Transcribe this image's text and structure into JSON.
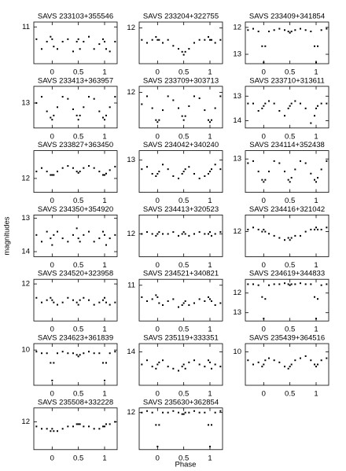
{
  "x_axis_label": "Phase",
  "y_axis_label": "magnitudes",
  "chart_data": [
    {
      "type": "scatter",
      "title": "SAVS 233103+355546",
      "x": [
        -0.3,
        -0.2,
        -0.1,
        -0.03,
        0,
        0.03,
        0.1,
        0.2,
        0.3,
        0.4,
        0.47,
        0.5,
        0.53,
        0.6,
        0.7,
        0.8,
        0.9,
        0.97,
        1,
        1.03,
        1.1,
        1.2
      ],
      "values": [
        11.25,
        11.45,
        11.3,
        11.2,
        11.25,
        11.4,
        11.45,
        11.3,
        11.25,
        11.5,
        11.3,
        11.25,
        11.45,
        11.3,
        11.2,
        11.45,
        11.35,
        11.25,
        11.3,
        11.45,
        11.5,
        11.3
      ],
      "xlim": [
        -0.35,
        1.24
      ],
      "xticks": [
        0,
        0.5,
        1
      ],
      "ylim": [
        11.75,
        10.9
      ],
      "yticks": [
        11
      ],
      "color": "#000000"
    },
    {
      "type": "scatter",
      "title": "SAVS 233204+322755",
      "x": [
        -0.3,
        -0.2,
        -0.1,
        -0.03,
        0,
        0.03,
        0.1,
        0.2,
        0.3,
        0.4,
        0.47,
        0.5,
        0.53,
        0.6,
        0.7,
        0.8,
        0.9,
        0.97,
        1,
        1.03,
        1.1,
        1.2
      ],
      "values": [
        12.2,
        12.25,
        12.2,
        12.15,
        12.2,
        12.2,
        12.25,
        12.2,
        12.3,
        12.35,
        12.4,
        12.45,
        12.4,
        12.35,
        12.25,
        12.2,
        12.2,
        12.15,
        12.2,
        12.2,
        12.25,
        12.2
      ],
      "xlim": [
        -0.35,
        1.24
      ],
      "xticks": [
        0,
        0.5,
        1
      ],
      "ylim": [
        12.6,
        11.9
      ],
      "yticks": [
        12
      ],
      "color": "#000000"
    },
    {
      "type": "scatter",
      "title": "SAVS 233409+341854",
      "x": [
        -0.3,
        -0.2,
        -0.1,
        -0.03,
        0,
        0.03,
        0.1,
        0.2,
        0.3,
        0.4,
        0.47,
        0.5,
        0.53,
        0.6,
        0.7,
        0.8,
        0.9,
        0.97,
        1,
        1.03,
        1.1,
        1.2
      ],
      "values": [
        12.1,
        12.05,
        12.15,
        12.7,
        13.3,
        12.7,
        12.15,
        12.1,
        12.05,
        12.1,
        12.15,
        12.2,
        12.15,
        12.1,
        12.05,
        12.1,
        12.15,
        12.7,
        13.3,
        12.7,
        12.1,
        12.05
      ],
      "xlim": [
        -0.35,
        1.24
      ],
      "xticks": [
        0,
        0.5,
        1
      ],
      "ylim": [
        13.35,
        11.8
      ],
      "yticks": [
        12,
        13
      ],
      "color": "#000000"
    },
    {
      "type": "scatter",
      "title": "SAVS 233413+363957",
      "x": [
        -0.3,
        -0.2,
        -0.1,
        -0.03,
        0,
        0.03,
        0.1,
        0.2,
        0.3,
        0.4,
        0.47,
        0.5,
        0.53,
        0.6,
        0.7,
        0.8,
        0.9,
        0.97,
        1,
        1.03,
        1.1,
        1.2
      ],
      "values": [
        13.0,
        12.85,
        13.2,
        13.35,
        13.4,
        13.3,
        13.1,
        12.85,
        12.9,
        13.15,
        13.3,
        13.4,
        13.3,
        13.1,
        12.85,
        12.9,
        13.2,
        13.35,
        13.4,
        13.3,
        13.1,
        12.85
      ],
      "xlim": [
        -0.35,
        1.24
      ],
      "xticks": [
        0,
        0.5,
        1
      ],
      "ylim": [
        13.6,
        12.6
      ],
      "yticks": [
        13
      ],
      "color": "#000000"
    },
    {
      "type": "scatter",
      "title": "SAVS 233709+303713",
      "x": [
        -0.3,
        -0.2,
        -0.1,
        -0.03,
        0,
        0.03,
        0.1,
        0.2,
        0.3,
        0.4,
        0.47,
        0.5,
        0.53,
        0.6,
        0.7,
        0.8,
        0.9,
        0.97,
        1,
        1.03,
        1.1,
        1.2
      ],
      "values": [
        12.3,
        12.1,
        12.4,
        12.7,
        12.75,
        12.7,
        12.45,
        12.1,
        12.2,
        12.4,
        12.6,
        12.7,
        12.6,
        12.35,
        12.1,
        12.15,
        12.45,
        12.7,
        12.75,
        12.7,
        12.4,
        12.1
      ],
      "xlim": [
        -0.35,
        1.24
      ],
      "xticks": [
        0,
        0.5,
        1
      ],
      "ylim": [
        12.9,
        11.85
      ],
      "yticks": [
        12
      ],
      "color": "#000000"
    },
    {
      "type": "scatter",
      "title": "SAVS 233710+313611",
      "x": [
        -0.3,
        -0.2,
        -0.1,
        -0.03,
        0,
        0.03,
        0.1,
        0.2,
        0.3,
        0.4,
        0.47,
        0.5,
        0.53,
        0.6,
        0.7,
        0.8,
        0.9,
        0.97,
        1,
        1.03,
        1.1,
        1.2
      ],
      "values": [
        13.3,
        13.3,
        13.6,
        13.5,
        13.4,
        13.3,
        13.2,
        13.3,
        13.6,
        13.8,
        13.5,
        13.4,
        13.3,
        13.2,
        13.3,
        13.5,
        14.1,
        13.8,
        13.5,
        13.4,
        13.3,
        13.3
      ],
      "xlim": [
        -0.35,
        1.24
      ],
      "xticks": [
        0,
        0.5,
        1
      ],
      "ylim": [
        14.3,
        12.6
      ],
      "yticks": [
        13,
        14
      ],
      "color": "#000000"
    },
    {
      "type": "scatter",
      "title": "SAVS 233827+363450",
      "x": [
        -0.3,
        -0.2,
        -0.1,
        -0.03,
        0,
        0.03,
        0.1,
        0.2,
        0.3,
        0.4,
        0.47,
        0.5,
        0.53,
        0.6,
        0.7,
        0.8,
        0.9,
        0.97,
        1,
        1.03,
        1.1,
        1.2
      ],
      "values": [
        11.9,
        11.85,
        11.9,
        11.95,
        11.95,
        11.95,
        11.9,
        11.85,
        11.82,
        11.85,
        11.9,
        11.92,
        11.9,
        11.85,
        11.82,
        11.85,
        11.9,
        11.95,
        11.95,
        11.93,
        11.88,
        11.83
      ],
      "xlim": [
        -0.35,
        1.24
      ],
      "xticks": [
        0,
        0.5,
        1
      ],
      "ylim": [
        12.2,
        11.6
      ],
      "yticks": [
        12
      ],
      "color": "#000000"
    },
    {
      "type": "scatter",
      "title": "SAVS 234042+340240",
      "x": [
        -0.3,
        -0.2,
        -0.1,
        -0.03,
        0,
        0.03,
        0.1,
        0.2,
        0.3,
        0.4,
        0.47,
        0.5,
        0.53,
        0.6,
        0.7,
        0.8,
        0.9,
        0.97,
        1,
        1.03,
        1.1,
        1.2
      ],
      "values": [
        13.2,
        13.15,
        13.3,
        13.35,
        13.3,
        13.25,
        13.1,
        13.2,
        13.35,
        13.4,
        13.3,
        13.25,
        13.2,
        13.15,
        13.3,
        13.4,
        13.35,
        13.3,
        13.25,
        13.2,
        13.1,
        13.2
      ],
      "xlim": [
        -0.35,
        1.24
      ],
      "xticks": [
        0,
        0.5,
        1
      ],
      "ylim": [
        13.7,
        12.8
      ],
      "yticks": [
        13
      ],
      "color": "#000000"
    },
    {
      "type": "scatter",
      "title": "SAVS 234114+352438",
      "x": [
        -0.3,
        -0.2,
        -0.1,
        -0.03,
        0,
        0.03,
        0.1,
        0.2,
        0.3,
        0.4,
        0.47,
        0.5,
        0.53,
        0.6,
        0.7,
        0.8,
        0.9,
        0.97,
        1,
        1.03,
        1.1,
        1.2
      ],
      "values": [
        13.1,
        13.05,
        13.3,
        13.5,
        13.55,
        13.5,
        13.3,
        13.05,
        13.1,
        13.3,
        13.5,
        13.55,
        13.45,
        13.25,
        13.05,
        13.1,
        13.35,
        13.5,
        13.55,
        13.45,
        13.25,
        13.05
      ],
      "xlim": [
        -0.35,
        1.24
      ],
      "xticks": [
        0,
        0.5,
        1
      ],
      "ylim": [
        13.8,
        12.8
      ],
      "yticks": [
        13
      ],
      "color": "#000000"
    },
    {
      "type": "scatter",
      "title": "SAVS 234350+354920",
      "x": [
        -0.3,
        -0.2,
        -0.1,
        -0.03,
        0,
        0.03,
        0.1,
        0.2,
        0.3,
        0.4,
        0.47,
        0.5,
        0.53,
        0.6,
        0.7,
        0.8,
        0.9,
        0.97,
        1,
        1.03,
        1.1,
        1.2
      ],
      "values": [
        13.5,
        13.7,
        13.4,
        13.6,
        13.8,
        13.5,
        13.4,
        13.6,
        13.7,
        13.5,
        13.3,
        13.6,
        13.7,
        13.5,
        13.4,
        13.7,
        13.6,
        13.4,
        13.5,
        13.8,
        13.6,
        13.5
      ],
      "xlim": [
        -0.35,
        1.24
      ],
      "xticks": [
        0,
        0.5,
        1
      ],
      "ylim": [
        14.15,
        12.9
      ],
      "yticks": [
        13,
        14
      ],
      "color": "#000000"
    },
    {
      "type": "scatter",
      "title": "SAVS 234413+320523",
      "x": [
        -0.3,
        -0.2,
        -0.1,
        -0.03,
        0,
        0.03,
        0.1,
        0.2,
        0.3,
        0.4,
        0.47,
        0.5,
        0.53,
        0.6,
        0.7,
        0.8,
        0.9,
        0.97,
        1,
        1.03,
        1.1,
        1.2
      ],
      "values": [
        12.0,
        11.95,
        12.0,
        12.05,
        12.0,
        11.95,
        12.0,
        12.0,
        11.95,
        12.05,
        12.0,
        11.95,
        12.0,
        12.05,
        12.0,
        11.95,
        12.0,
        12.0,
        11.95,
        12.05,
        12.0,
        11.95
      ],
      "xlim": [
        -0.35,
        1.24
      ],
      "xticks": [
        0,
        0.5,
        1
      ],
      "ylim": [
        12.6,
        11.5
      ],
      "yticks": [
        12
      ],
      "color": "#000000"
    },
    {
      "type": "scatter",
      "title": "SAVS 234416+321042",
      "x": [
        -0.3,
        -0.2,
        -0.1,
        -0.03,
        0,
        0.03,
        0.1,
        0.2,
        0.3,
        0.4,
        0.47,
        0.5,
        0.53,
        0.6,
        0.7,
        0.8,
        0.9,
        0.97,
        1,
        1.03,
        1.1,
        1.2
      ],
      "values": [
        11.95,
        11.9,
        11.95,
        12.0,
        11.95,
        12.0,
        12.05,
        12.1,
        12.15,
        12.2,
        12.15,
        12.2,
        12.15,
        12.1,
        12.1,
        12.0,
        11.95,
        11.95,
        11.9,
        11.95,
        11.95,
        11.9
      ],
      "xlim": [
        -0.35,
        1.24
      ],
      "xticks": [
        0,
        0.5,
        1
      ],
      "ylim": [
        12.6,
        11.6
      ],
      "yticks": [
        12
      ],
      "color": "#000000"
    },
    {
      "type": "scatter",
      "title": "SAVS 234520+323958",
      "x": [
        -0.3,
        -0.2,
        -0.1,
        -0.03,
        0,
        0.03,
        0.1,
        0.2,
        0.3,
        0.4,
        0.47,
        0.5,
        0.53,
        0.6,
        0.7,
        0.8,
        0.9,
        0.97,
        1,
        1.03,
        1.1,
        1.2
      ],
      "values": [
        12.3,
        12.4,
        12.35,
        12.3,
        12.35,
        12.4,
        12.45,
        12.4,
        12.3,
        12.35,
        12.4,
        12.45,
        12.35,
        12.3,
        12.35,
        12.45,
        12.4,
        12.35,
        12.3,
        12.4,
        12.45,
        12.4
      ],
      "xlim": [
        -0.35,
        1.24
      ],
      "xticks": [
        0,
        0.5,
        1
      ],
      "ylim": [
        12.8,
        11.9
      ],
      "yticks": [
        12
      ],
      "color": "#000000"
    },
    {
      "type": "scatter",
      "title": "SAVS 234521+340821",
      "x": [
        -0.3,
        -0.2,
        -0.1,
        -0.03,
        0,
        0.03,
        0.1,
        0.2,
        0.3,
        0.4,
        0.47,
        0.5,
        0.53,
        0.6,
        0.7,
        0.8,
        0.9,
        0.97,
        1,
        1.03,
        1.1,
        1.2
      ],
      "values": [
        11.3,
        11.4,
        11.35,
        11.25,
        11.3,
        11.45,
        11.5,
        11.4,
        11.35,
        11.55,
        11.5,
        11.45,
        11.4,
        11.5,
        11.45,
        11.35,
        11.4,
        11.3,
        11.35,
        11.4,
        11.5,
        11.45
      ],
      "xlim": [
        -0.35,
        1.24
      ],
      "xticks": [
        0,
        0.5,
        1
      ],
      "ylim": [
        11.9,
        10.85
      ],
      "yticks": [
        11
      ],
      "color": "#000000"
    },
    {
      "type": "scatter",
      "title": "SAVS 234619+344833",
      "x": [
        -0.3,
        -0.2,
        -0.1,
        -0.03,
        0,
        0.03,
        0.1,
        0.2,
        0.3,
        0.4,
        0.47,
        0.5,
        0.53,
        0.6,
        0.7,
        0.8,
        0.9,
        0.97,
        1,
        1.03,
        1.1,
        1.2
      ],
      "values": [
        11.55,
        11.55,
        11.6,
        12.2,
        13.3,
        12.3,
        11.6,
        11.55,
        11.55,
        11.5,
        11.55,
        11.6,
        11.55,
        11.55,
        11.5,
        11.55,
        11.55,
        12.2,
        13.3,
        12.3,
        11.6,
        11.55
      ],
      "xlim": [
        -0.35,
        1.24
      ],
      "xticks": [
        0,
        0.5,
        1
      ],
      "ylim": [
        13.42,
        11.3
      ],
      "yticks": [
        12,
        13
      ],
      "color": "#000000"
    },
    {
      "type": "scatter",
      "title": "SAVS 234623+361839",
      "x": [
        -0.3,
        -0.2,
        -0.1,
        -0.03,
        0,
        0.03,
        0.1,
        0.2,
        0.3,
        0.4,
        0.47,
        0.5,
        0.53,
        0.6,
        0.7,
        0.8,
        0.9,
        0.97,
        1,
        1.03,
        1.1,
        1.2
      ],
      "values": [
        10.05,
        10.1,
        10.1,
        10.4,
        10.95,
        10.4,
        10.1,
        10.05,
        10.1,
        10.1,
        10.15,
        10.2,
        10.15,
        10.1,
        10.05,
        10.1,
        10.1,
        10.4,
        10.95,
        10.4,
        10.1,
        10.05
      ],
      "xlim": [
        -0.35,
        1.24
      ],
      "xticks": [
        0,
        0.5,
        1
      ],
      "ylim": [
        11.1,
        9.8
      ],
      "yticks": [
        10
      ],
      "color": "#000000"
    },
    {
      "type": "scatter",
      "title": "SAVS 235119+333351",
      "x": [
        -0.3,
        -0.2,
        -0.1,
        -0.03,
        0,
        0.03,
        0.1,
        0.2,
        0.3,
        0.4,
        0.47,
        0.5,
        0.53,
        0.6,
        0.7,
        0.8,
        0.9,
        0.97,
        1,
        1.03,
        1.1,
        1.2
      ],
      "values": [
        14.3,
        14.2,
        14.35,
        14.4,
        14.3,
        14.25,
        14.2,
        14.35,
        14.4,
        14.45,
        14.35,
        14.3,
        14.4,
        14.25,
        14.2,
        14.3,
        14.35,
        14.2,
        14.25,
        14.4,
        14.3,
        14.35
      ],
      "xlim": [
        -0.35,
        1.24
      ],
      "xticks": [
        0,
        0.5,
        1
      ],
      "ylim": [
        14.8,
        13.8
      ],
      "yticks": [
        14
      ],
      "color": "#000000"
    },
    {
      "type": "scatter",
      "title": "SAVS 235439+364516",
      "x": [
        -0.3,
        -0.2,
        -0.1,
        -0.03,
        0,
        0.03,
        0.1,
        0.2,
        0.3,
        0.4,
        0.47,
        0.5,
        0.53,
        0.6,
        0.7,
        0.8,
        0.9,
        0.97,
        1,
        1.03,
        1.1,
        1.2
      ],
      "values": [
        10.2,
        10.3,
        10.25,
        10.35,
        10.3,
        10.2,
        10.15,
        10.2,
        10.25,
        10.35,
        10.4,
        10.35,
        10.3,
        10.2,
        10.15,
        10.1,
        10.2,
        10.3,
        10.35,
        10.3,
        10.2,
        10.15
      ],
      "xlim": [
        -0.35,
        1.24
      ],
      "xticks": [
        0,
        0.5,
        1
      ],
      "ylim": [
        10.8,
        9.8
      ],
      "yticks": [
        10
      ],
      "color": "#000000"
    },
    {
      "type": "scatter",
      "title": "SAVS 235508+332228",
      "x": [
        -0.3,
        -0.2,
        -0.1,
        -0.03,
        0,
        0.03,
        0.1,
        0.2,
        0.3,
        0.4,
        0.47,
        0.5,
        0.53,
        0.6,
        0.7,
        0.8,
        0.9,
        0.97,
        1,
        1.03,
        1.1,
        1.2
      ],
      "values": [
        12.1,
        12.15,
        12.15,
        12.2,
        12.15,
        12.2,
        12.2,
        12.15,
        12.1,
        12.1,
        12.05,
        12.05,
        12.05,
        12.1,
        12.1,
        12.15,
        12.15,
        12.1,
        12.1,
        12.05,
        12.05,
        12.0
      ],
      "xlim": [
        -0.35,
        1.24
      ],
      "xticks": [
        0,
        0.5,
        1
      ],
      "ylim": [
        12.6,
        11.7
      ],
      "yticks": [
        12
      ],
      "color": "#000000"
    },
    {
      "type": "scatter",
      "title": "SAVS 235630+362854",
      "x": [
        -0.3,
        -0.2,
        -0.1,
        -0.03,
        0,
        0.03,
        0.1,
        0.2,
        0.3,
        0.4,
        0.47,
        0.5,
        0.53,
        0.6,
        0.7,
        0.8,
        0.9,
        0.97,
        1,
        1.03,
        1.1,
        1.2
      ],
      "values": [
        12.0,
        11.95,
        12.0,
        12.4,
        13.1,
        12.4,
        12.0,
        12.0,
        11.95,
        12.0,
        12.05,
        12.05,
        12.0,
        12.0,
        11.95,
        12.0,
        12.0,
        12.4,
        13.1,
        12.4,
        12.0,
        11.95
      ],
      "xlim": [
        -0.35,
        1.24
      ],
      "xticks": [
        0,
        0.5,
        1
      ],
      "ylim": [
        13.2,
        11.85
      ],
      "yticks": [
        12
      ],
      "color": "#000000"
    }
  ]
}
